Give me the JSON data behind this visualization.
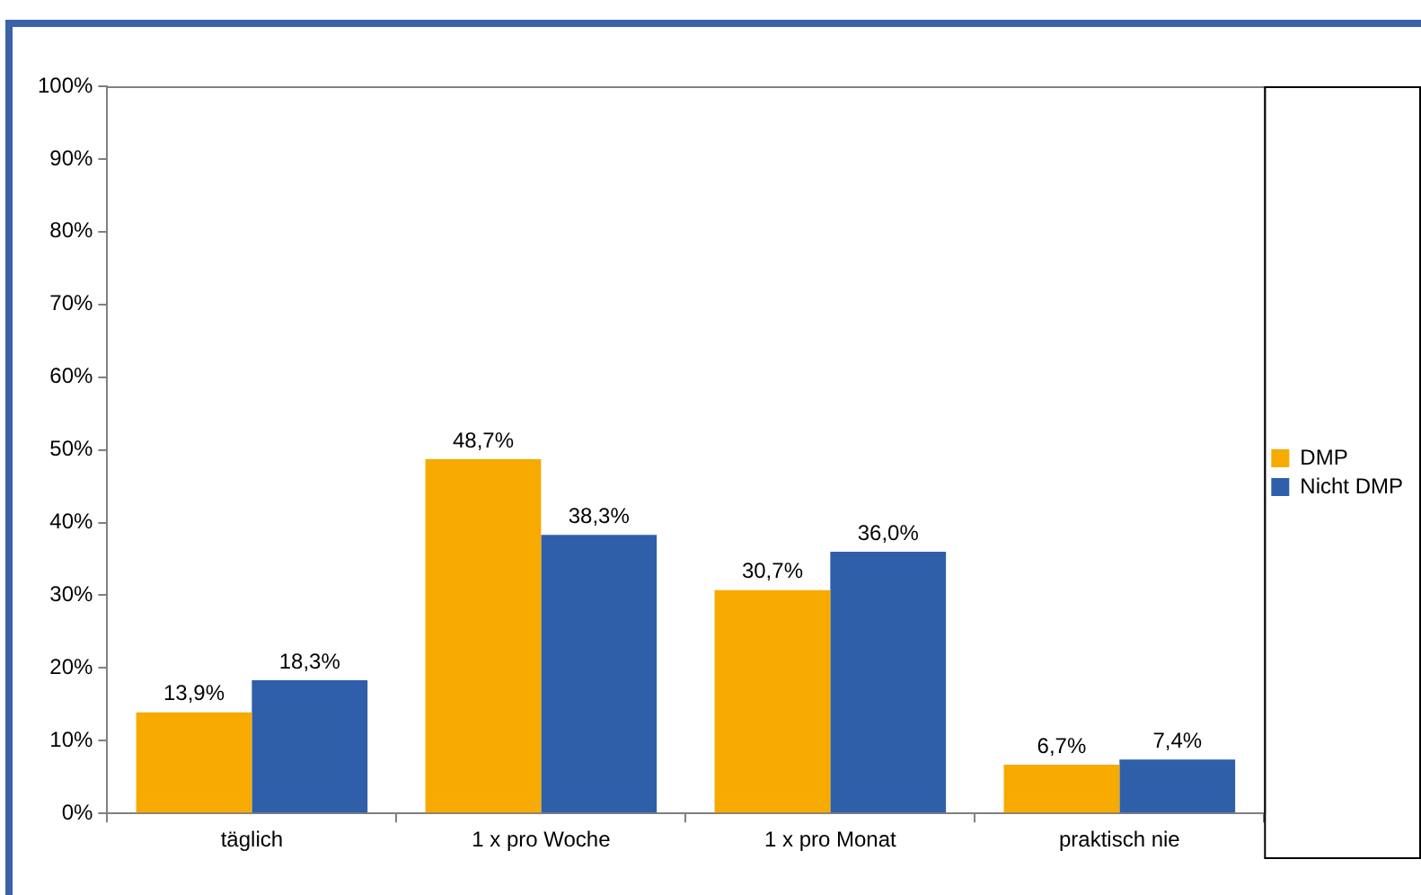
{
  "chart_data": {
    "type": "bar",
    "categories": [
      "täglich",
      "1 x pro Woche",
      "1 x pro Monat",
      "praktisch nie"
    ],
    "series": [
      {
        "name": "DMP",
        "color": "#f7aa00",
        "values": [
          13.9,
          48.7,
          30.7,
          6.7
        ],
        "value_labels": [
          "13,9%",
          "48,7%",
          "30,7%",
          "6,7%"
        ]
      },
      {
        "name": "Nicht DMP",
        "color": "#2f5fa8",
        "values": [
          18.3,
          38.3,
          36.0,
          7.4
        ],
        "value_labels": [
          "18,3%",
          "38,3%",
          "36,0%",
          "7,4%"
        ]
      }
    ],
    "ylim": [
      0,
      100
    ],
    "yticks": [
      {
        "value": 0,
        "label": "0%"
      },
      {
        "value": 10,
        "label": "10%"
      },
      {
        "value": 20,
        "label": "20%"
      },
      {
        "value": 30,
        "label": "30%"
      },
      {
        "value": 40,
        "label": "40%"
      },
      {
        "value": 50,
        "label": "50%"
      },
      {
        "value": 60,
        "label": "60%"
      },
      {
        "value": 70,
        "label": "70%"
      },
      {
        "value": 80,
        "label": "80%"
      },
      {
        "value": 90,
        "label": "90%"
      },
      {
        "value": 100,
        "label": "100%"
      }
    ],
    "grid": false,
    "legend": "right"
  }
}
